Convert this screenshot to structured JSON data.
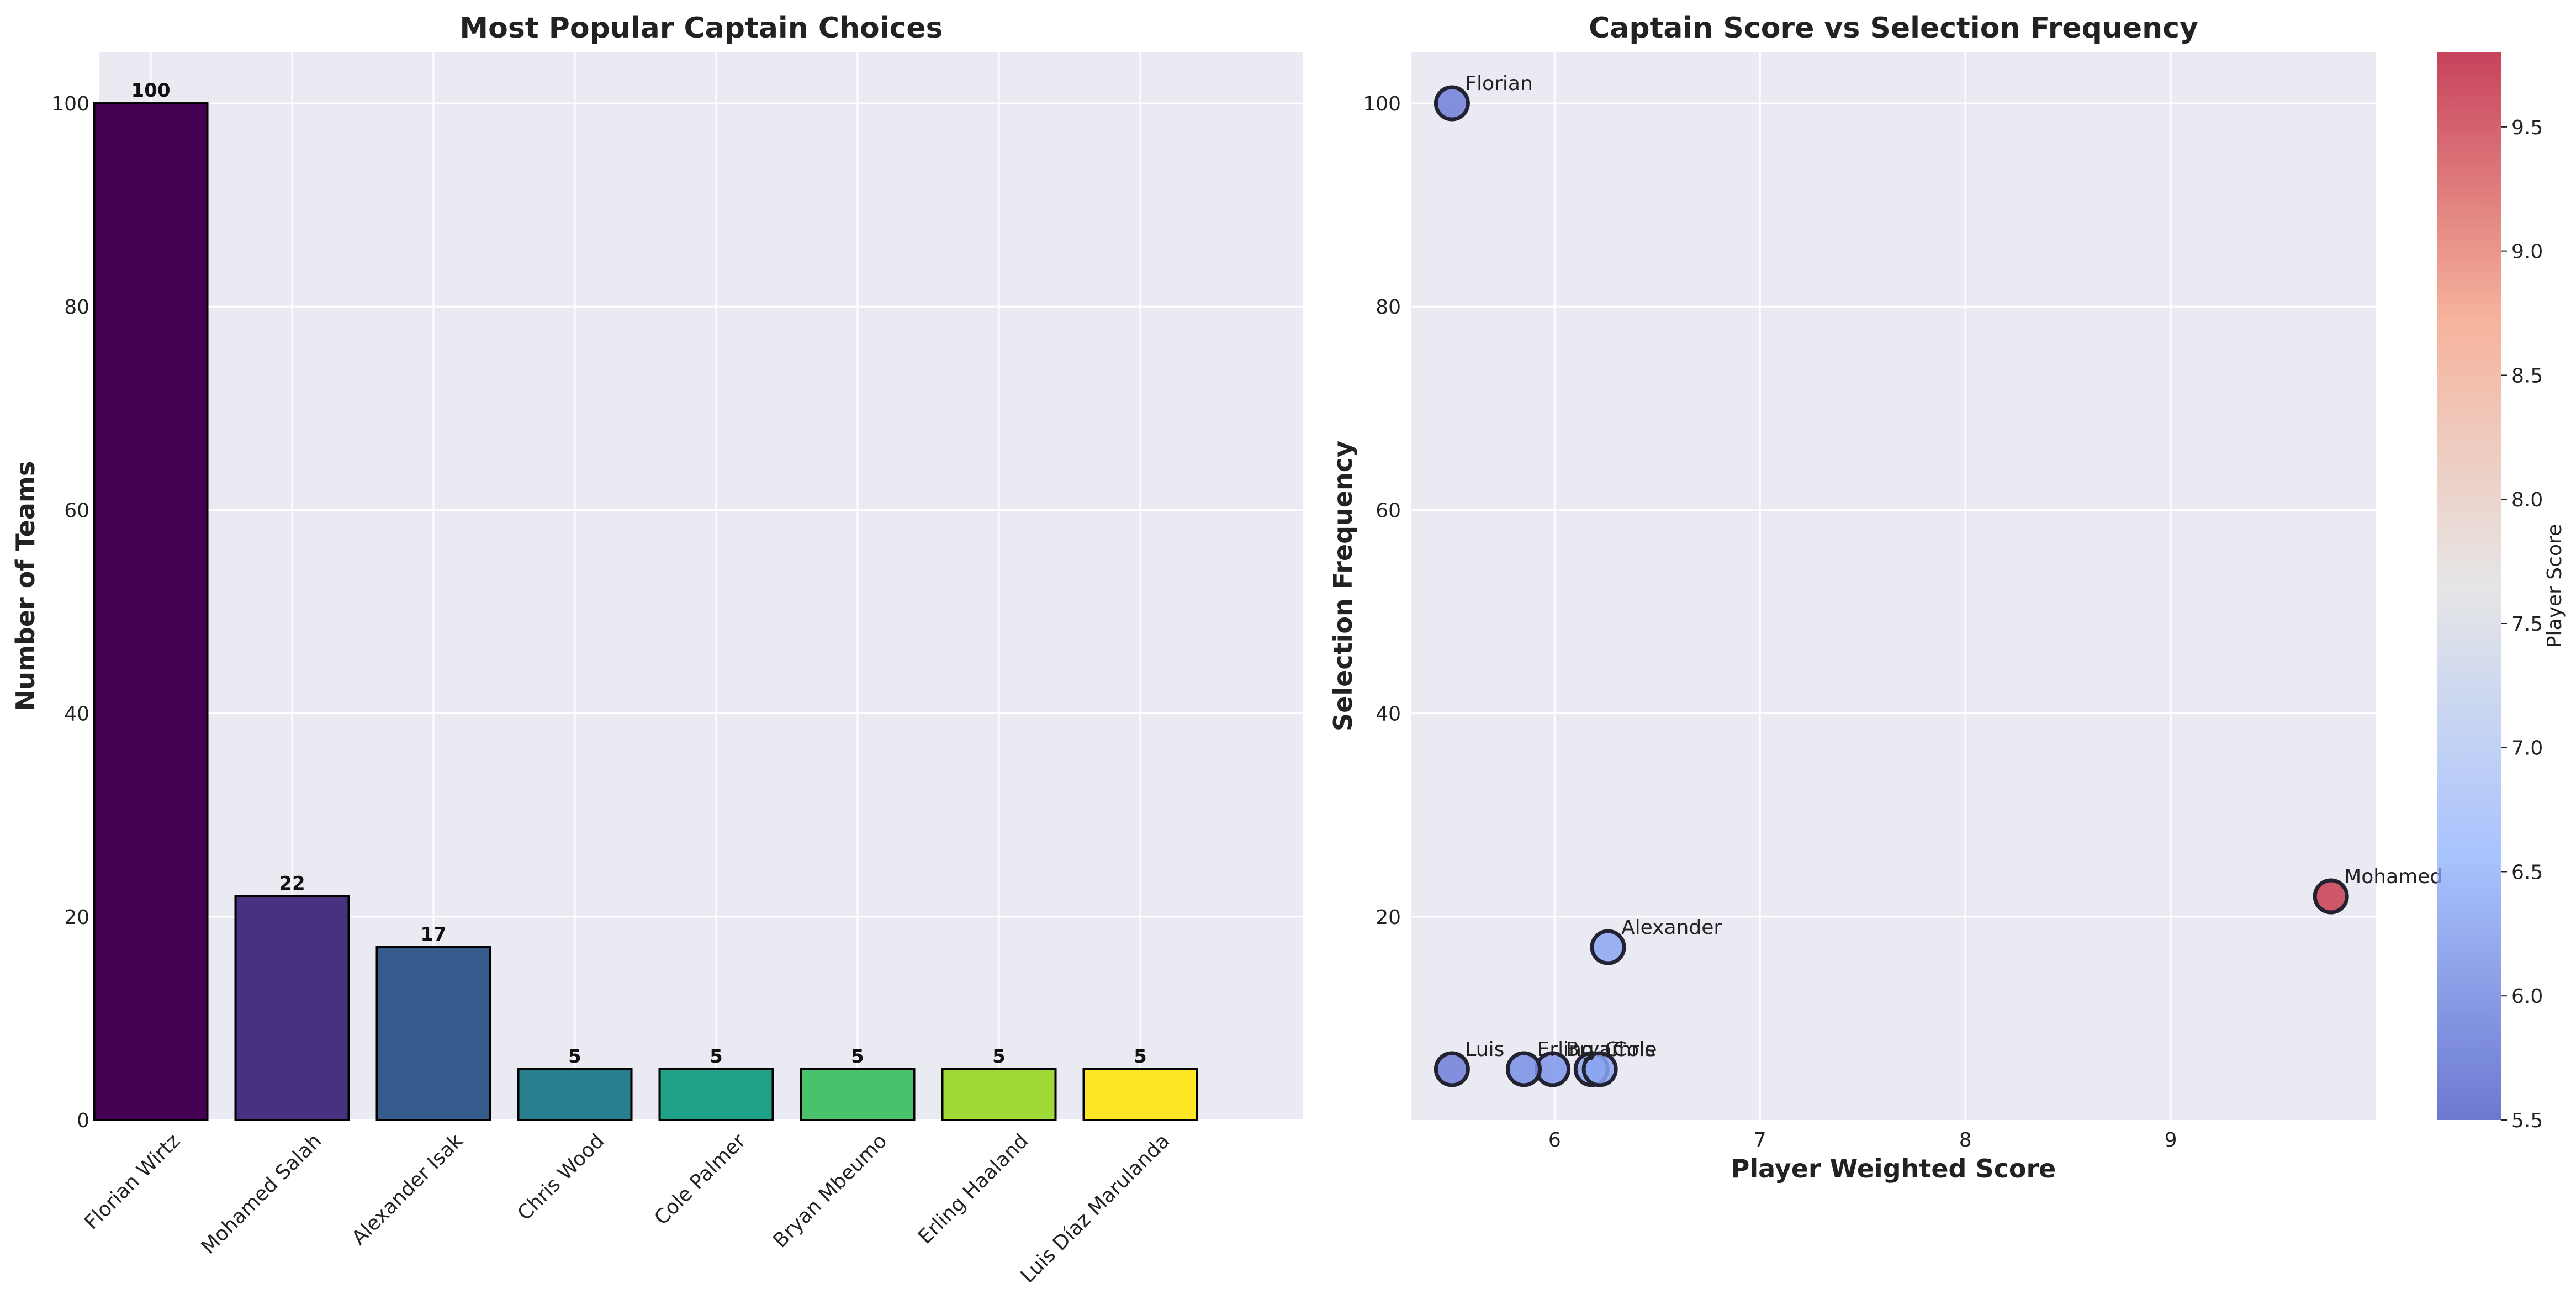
{
  "chart_data": [
    {
      "type": "bar",
      "title": "Most Popular Captain Choices",
      "xlabel": "",
      "ylabel": "Number of Teams",
      "categories": [
        "Florian Wirtz",
        "Mohamed Salah",
        "Alexander Isak",
        "Chris Wood",
        "Cole Palmer",
        "Bryan Mbeumo",
        "Erling Haaland",
        "Luis Díaz Marulanda"
      ],
      "values": [
        100,
        22,
        17,
        5,
        5,
        5,
        5,
        5
      ],
      "value_labels": [
        "100",
        "22",
        "17",
        "5",
        "5",
        "5",
        "5",
        "5"
      ],
      "colors": [
        "#440154",
        "#46327e",
        "#365c8d",
        "#277f8e",
        "#1fa187",
        "#4ac16d",
        "#a0da39",
        "#fde725"
      ],
      "ylim": [
        0,
        105
      ],
      "yticks": [
        0,
        20,
        40,
        60,
        80,
        100
      ],
      "ytick_labels": [
        "0",
        "20",
        "40",
        "60",
        "80",
        "100"
      ],
      "grid": true,
      "legend": "none"
    },
    {
      "type": "scatter",
      "title": "Captain Score vs Selection Frequency",
      "xlabel": "Player Weighted Score",
      "ylabel": "Selection Frequency",
      "points": [
        {
          "label": "Florian",
          "x": 5.5,
          "y": 100,
          "score": 5.5,
          "color": "#6e7fd8"
        },
        {
          "label": "Mohamed",
          "x": 9.78,
          "y": 22,
          "score": 9.78,
          "color": "#c83d4f"
        },
        {
          "label": "Alexander",
          "x": 6.26,
          "y": 17,
          "score": 6.26,
          "color": "#8da6f3"
        },
        {
          "label": "Chris",
          "x": 6.18,
          "y": 5,
          "score": 6.18,
          "color": "#8aa3f1"
        },
        {
          "label": "Cole",
          "x": 6.22,
          "y": 5,
          "score": 6.22,
          "color": "#8ba5f2"
        },
        {
          "label": "Bryan",
          "x": 5.99,
          "y": 5,
          "score": 5.99,
          "color": "#7f97eb"
        },
        {
          "label": "Erling",
          "x": 5.85,
          "y": 5,
          "score": 5.85,
          "color": "#7990e6"
        },
        {
          "label": "Luis",
          "x": 5.5,
          "y": 5,
          "score": 5.5,
          "color": "#6e7fd8"
        }
      ],
      "xlim": [
        5.3,
        10.0
      ],
      "ylim": [
        0,
        105
      ],
      "xticks": [
        6,
        7,
        8,
        9
      ],
      "xtick_labels": [
        "6",
        "7",
        "8",
        "9"
      ],
      "yticks": [
        20,
        40,
        60,
        80,
        100
      ],
      "ytick_labels": [
        "20",
        "40",
        "60",
        "80",
        "100"
      ],
      "grid": true,
      "colorbar": {
        "label": "Player Score",
        "min": 5.5,
        "max": 9.8,
        "colormap": "coolwarm",
        "ticks": [
          5.5,
          6.0,
          6.5,
          7.0,
          7.5,
          8.0,
          8.5,
          9.0,
          9.5
        ],
        "tick_labels": [
          "5.5",
          "6.0",
          "6.5",
          "7.0",
          "7.5",
          "8.0",
          "8.5",
          "9.0",
          "9.5"
        ],
        "stops": [
          "#3b4cc0",
          "#8db0fe",
          "#dddddd",
          "#f49a7b",
          "#b40426"
        ]
      }
    }
  ]
}
